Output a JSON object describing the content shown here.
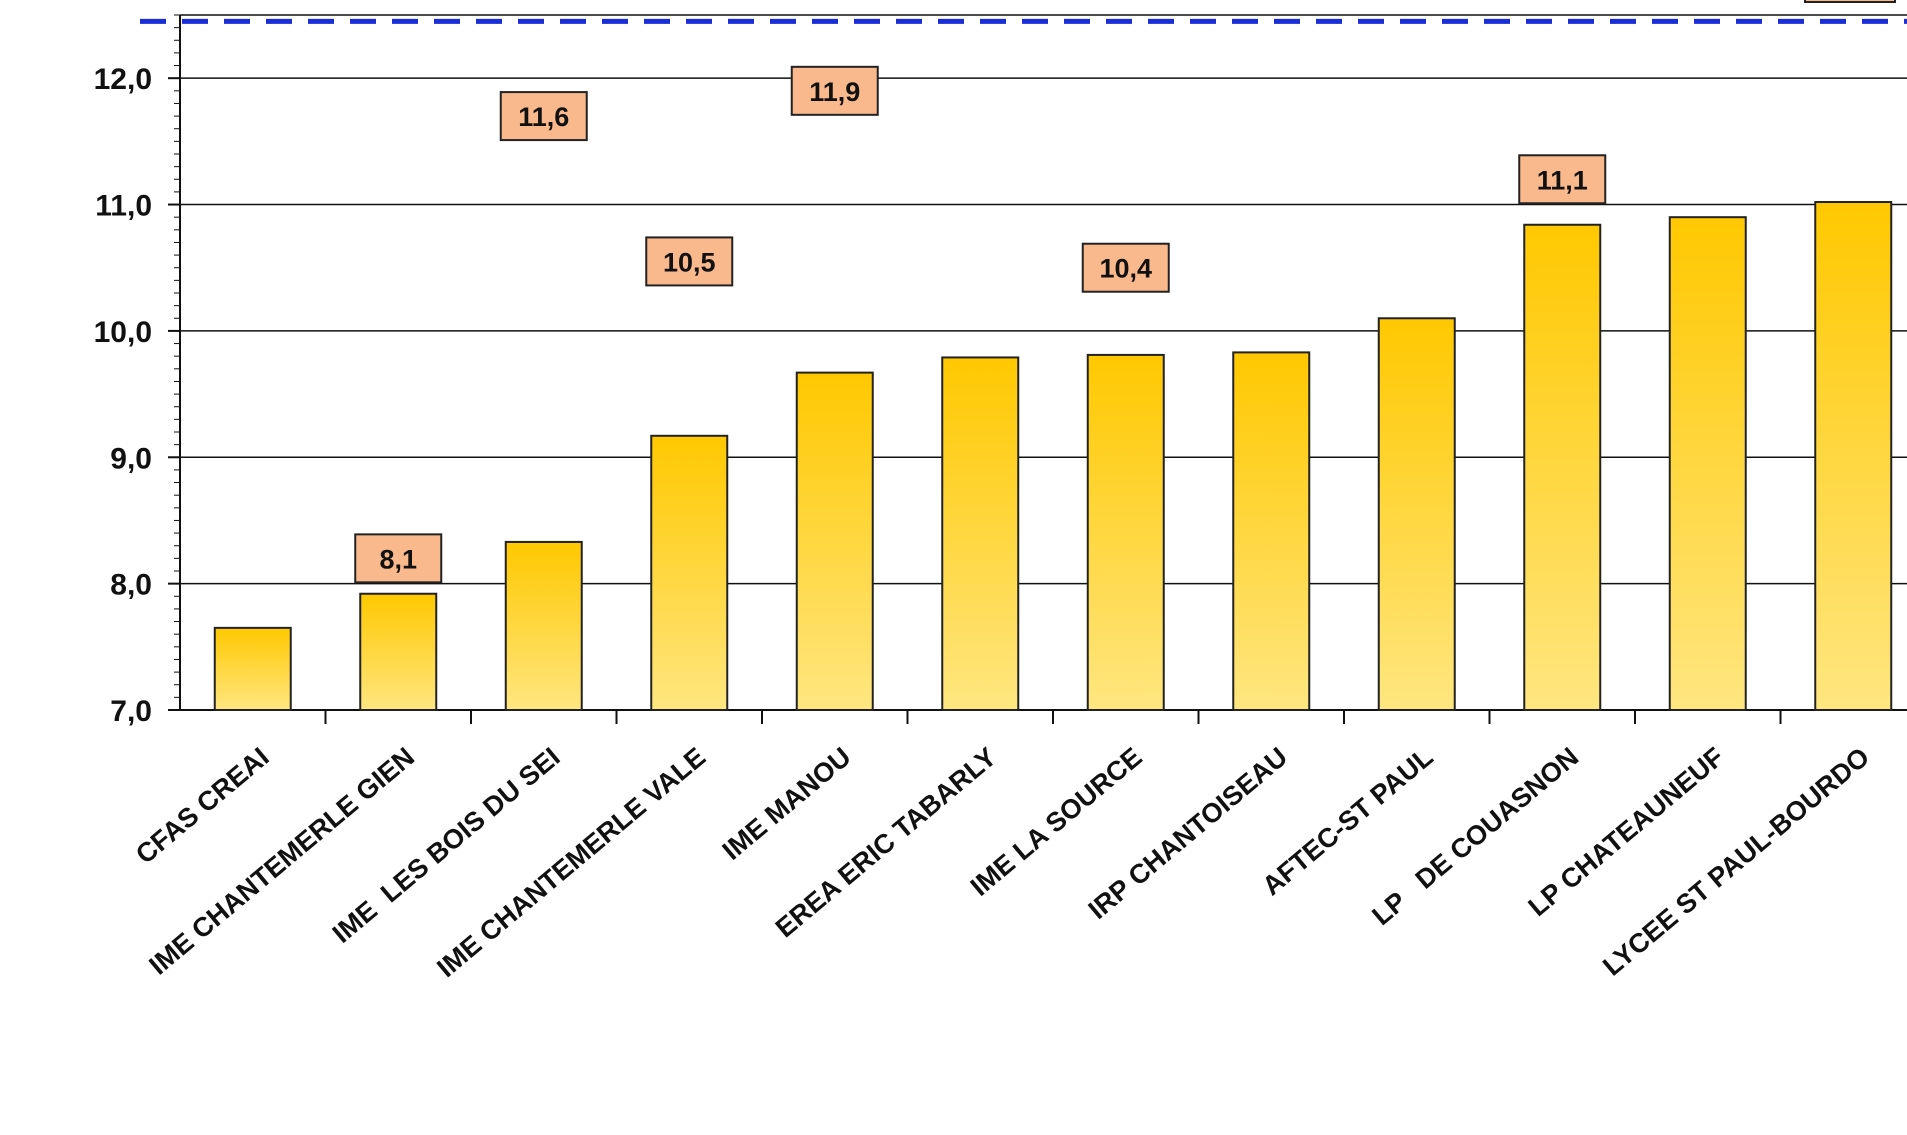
{
  "chart_data": {
    "type": "bar",
    "title": "",
    "xlabel": "",
    "ylabel": "",
    "ylim": [
      7.0,
      12.5
    ],
    "y_ticks": [
      {
        "value": 7.0,
        "label": "7,0"
      },
      {
        "value": 8.0,
        "label": "8,0"
      },
      {
        "value": 9.0,
        "label": "9,0"
      },
      {
        "value": 10.0,
        "label": "10,0"
      },
      {
        "value": 11.0,
        "label": "11,0"
      },
      {
        "value": 12.0,
        "label": "12,0"
      }
    ],
    "grid": true,
    "reference_line": {
      "value": 12.45,
      "style": "dashed",
      "color": "#1a2ed8"
    },
    "categories": [
      "CFAS CREAI",
      "IME CHANTEMERLE GIEN",
      "IME  LES BOIS DU SEI",
      "IME CHANTEMERLE VALE",
      "IME MANOU",
      "EREA ERIC TABARLY",
      "IME LA SOURCE",
      "IRP CHANTOISEAU",
      "AFTEC-ST PAUL",
      "LP   DE COUASNON",
      "LP CHATEAUNEUF",
      "LYCEE ST PAUL-BOURDO"
    ],
    "values": [
      7.65,
      7.92,
      8.33,
      9.17,
      9.67,
      9.79,
      9.81,
      9.83,
      10.1,
      10.84,
      10.9,
      11.02
    ],
    "annotations": [
      {
        "category_index": 1,
        "y": 8.2,
        "label": "8,1"
      },
      {
        "category_index": 2,
        "y": 11.7,
        "label": "11,6"
      },
      {
        "category_index": 3,
        "y": 10.55,
        "label": "10,5"
      },
      {
        "category_index": 4,
        "y": 11.9,
        "label": "11,9"
      },
      {
        "category_index": 6,
        "y": 10.5,
        "label": "10,4"
      },
      {
        "category_index": 9,
        "y": 11.2,
        "label": "11,1"
      }
    ],
    "colors": {
      "bar_top": "#ffc800",
      "bar_bottom": "#ffe680",
      "bar_border": "#222222",
      "annotation_fill": "#f9b98c",
      "grid": "#111111"
    }
  }
}
